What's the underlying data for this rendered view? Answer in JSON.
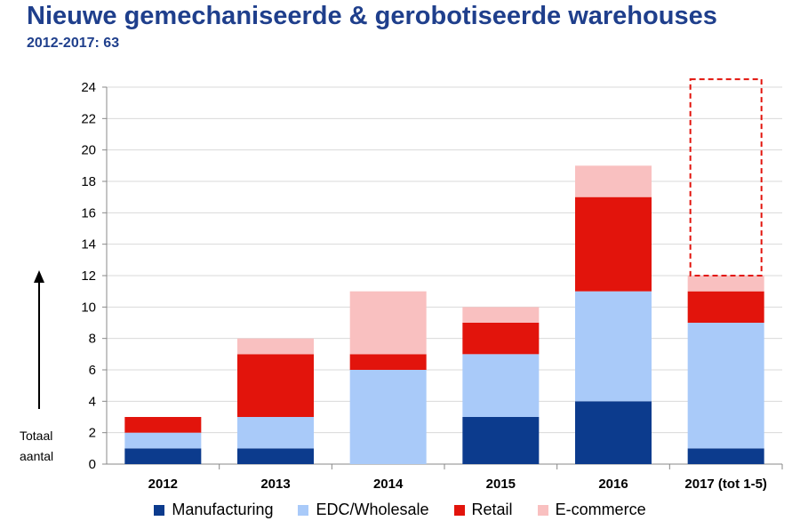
{
  "title": "Nieuwe gemechaniseerde & gerobotiseerde warehouses",
  "subtitle": "2012-2017: 63",
  "chart_data": {
    "type": "bar",
    "stacked": true,
    "categories": [
      "2012",
      "2013",
      "2014",
      "2015",
      "2016",
      "2017 (tot 1-5)"
    ],
    "series": [
      {
        "name": "Manufacturing",
        "color": "#0c3b8d",
        "values": [
          1,
          1,
          0,
          3,
          4,
          1
        ]
      },
      {
        "name": "EDC/Wholesale",
        "color": "#a9caf9",
        "values": [
          1,
          2,
          6,
          4,
          7,
          8
        ]
      },
      {
        "name": "Retail",
        "color": "#e2140c",
        "values": [
          1,
          4,
          1,
          2,
          6,
          2
        ]
      },
      {
        "name": "E-commerce",
        "color": "#f9c0c0",
        "values": [
          0,
          1,
          4,
          1,
          2,
          1
        ]
      }
    ],
    "ylim": [
      0,
      24
    ],
    "yticks": [
      0,
      2,
      4,
      6,
      8,
      10,
      12,
      14,
      16,
      18,
      20,
      22,
      24
    ],
    "ylabel": [
      "Totaal",
      "aantal"
    ],
    "grid": true,
    "legend_position": "bottom",
    "projection_box": {
      "category": "2017 (tot 1-5)",
      "value": 24.5,
      "color": "#e2140c",
      "style": "dashed"
    }
  }
}
